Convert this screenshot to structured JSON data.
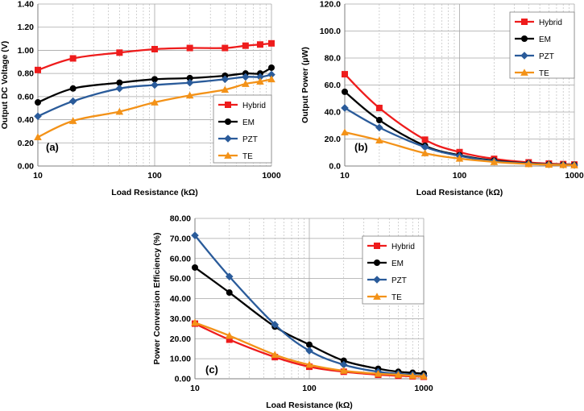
{
  "chart_data": [
    {
      "type": "line",
      "panel_label": "(a)",
      "xlabel": "Load Resistance (kΩ)",
      "ylabel": "Output DC Voltage (V)",
      "x_scale": "log",
      "xlim": [
        10,
        1000
      ],
      "ylim": [
        0,
        1.4
      ],
      "x_ticks": [
        10,
        100,
        1000
      ],
      "x_tick_labels": [
        "10",
        "100",
        "1000"
      ],
      "y_ticks": [
        0,
        0.2,
        0.4,
        0.6,
        0.8,
        1.0,
        1.2,
        1.4
      ],
      "y_tick_labels": [
        "0.00",
        "0.20",
        "0.40",
        "0.60",
        "0.80",
        "1.00",
        "1.20",
        "1.40"
      ],
      "grid": true,
      "legend_position": "bottom-right",
      "series": [
        {
          "name": "Hybrid",
          "color": "#ee1c1c",
          "marker": "square",
          "x": [
            10,
            20,
            50,
            100,
            200,
            400,
            600,
            800,
            1000
          ],
          "y": [
            0.83,
            0.93,
            0.98,
            1.01,
            1.02,
            1.02,
            1.04,
            1.05,
            1.06
          ]
        },
        {
          "name": "EM",
          "color": "#000000",
          "marker": "circle",
          "x": [
            10,
            20,
            50,
            100,
            200,
            400,
            600,
            800,
            1000
          ],
          "y": [
            0.55,
            0.67,
            0.72,
            0.75,
            0.76,
            0.78,
            0.8,
            0.8,
            0.85
          ]
        },
        {
          "name": "PZT",
          "color": "#2a5b9a",
          "marker": "diamond",
          "x": [
            10,
            20,
            50,
            100,
            200,
            400,
            600,
            800,
            1000
          ],
          "y": [
            0.43,
            0.56,
            0.67,
            0.7,
            0.72,
            0.75,
            0.77,
            0.77,
            0.79
          ]
        },
        {
          "name": "TE",
          "color": "#f39218",
          "marker": "triangle",
          "x": [
            10,
            20,
            50,
            100,
            200,
            400,
            600,
            800,
            1000
          ],
          "y": [
            0.25,
            0.39,
            0.47,
            0.55,
            0.61,
            0.66,
            0.71,
            0.73,
            0.75
          ]
        }
      ]
    },
    {
      "type": "line",
      "panel_label": "(b)",
      "xlabel": "Load Resistance (kΩ)",
      "ylabel": "Output Power (µW)",
      "x_scale": "log",
      "xlim": [
        10,
        1000
      ],
      "ylim": [
        0,
        120
      ],
      "x_ticks": [
        10,
        100,
        1000
      ],
      "x_tick_labels": [
        "10",
        "100",
        "1000"
      ],
      "y_ticks": [
        0,
        20,
        40,
        60,
        80,
        100,
        120
      ],
      "y_tick_labels": [
        "0.0",
        "20.0",
        "40.0",
        "60.0",
        "80.0",
        "100.0",
        "120.0"
      ],
      "grid": true,
      "legend_position": "top-right",
      "series": [
        {
          "name": "Hybrid",
          "color": "#ee1c1c",
          "marker": "square",
          "x": [
            10,
            20,
            50,
            100,
            200,
            400,
            600,
            800,
            1000
          ],
          "y": [
            68,
            43,
            19.5,
            10.3,
            5.3,
            2.7,
            1.8,
            1.4,
            1.1
          ]
        },
        {
          "name": "EM",
          "color": "#000000",
          "marker": "circle",
          "x": [
            10,
            20,
            50,
            100,
            200,
            400,
            600,
            800,
            1000
          ],
          "y": [
            55,
            34,
            15,
            8,
            4,
            2,
            1.3,
            1,
            0.8
          ]
        },
        {
          "name": "PZT",
          "color": "#2a5b9a",
          "marker": "diamond",
          "x": [
            10,
            20,
            50,
            100,
            200,
            400,
            600,
            800,
            1000
          ],
          "y": [
            43,
            28.5,
            14,
            7.5,
            3.6,
            1.8,
            1.2,
            0.9,
            0.7
          ]
        },
        {
          "name": "TE",
          "color": "#f39218",
          "marker": "triangle",
          "x": [
            10,
            20,
            50,
            100,
            200,
            400,
            600,
            800,
            1000
          ],
          "y": [
            25,
            19,
            9.5,
            5.5,
            3,
            1.5,
            1,
            0.8,
            0.6
          ]
        }
      ]
    },
    {
      "type": "line",
      "panel_label": "(c)",
      "xlabel": "Load Resistance (kΩ)",
      "ylabel": "Power Conversion Efficiency (%)",
      "x_scale": "log",
      "xlim": [
        10,
        1000
      ],
      "ylim": [
        0,
        80
      ],
      "x_ticks": [
        10,
        100,
        1000
      ],
      "x_tick_labels": [
        "10",
        "100",
        "1000"
      ],
      "y_ticks": [
        0,
        10,
        20,
        30,
        40,
        50,
        60,
        70,
        80
      ],
      "y_tick_labels": [
        "0.00",
        "10.00",
        "20.00",
        "30.00",
        "40.00",
        "50.00",
        "60.00",
        "70.00",
        "80.00"
      ],
      "grid": true,
      "legend_position": "top-right",
      "series": [
        {
          "name": "Hybrid",
          "color": "#ee1c1c",
          "marker": "square",
          "x": [
            10,
            20,
            50,
            100,
            200,
            400,
            600,
            800,
            1000
          ],
          "y": [
            27.5,
            19.5,
            10.8,
            6,
            3.5,
            2,
            1.5,
            1.2,
            1
          ]
        },
        {
          "name": "EM",
          "color": "#000000",
          "marker": "circle",
          "x": [
            10,
            20,
            50,
            100,
            200,
            400,
            600,
            800,
            1000
          ],
          "y": [
            55.5,
            43,
            26,
            17,
            9,
            5,
            3.5,
            3,
            2.5
          ]
        },
        {
          "name": "PZT",
          "color": "#2a5b9a",
          "marker": "diamond",
          "x": [
            10,
            20,
            50,
            100,
            200,
            400,
            600,
            800,
            1000
          ],
          "y": [
            71.5,
            51,
            27,
            14,
            7,
            3.5,
            2.5,
            2,
            1.5
          ]
        },
        {
          "name": "TE",
          "color": "#f39218",
          "marker": "triangle",
          "x": [
            10,
            20,
            50,
            100,
            200,
            400,
            600,
            800,
            1000
          ],
          "y": [
            28,
            21.5,
            12,
            7,
            4,
            2.5,
            2,
            1.5,
            1.3
          ]
        }
      ]
    }
  ]
}
